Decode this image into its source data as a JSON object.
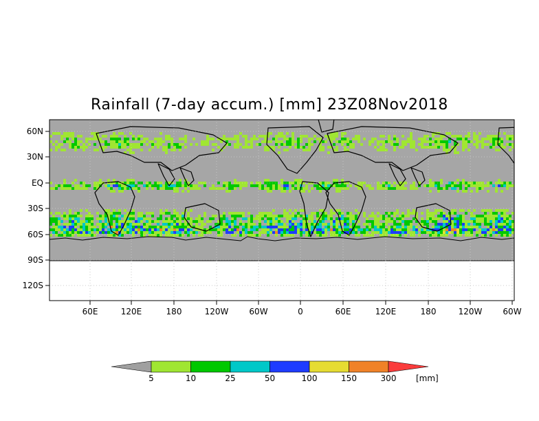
{
  "title": "Rainfall (7-day accum.) [mm] 23Z08Nov2018",
  "y_ticks": [
    "60N",
    "30N",
    "EQ",
    "30S",
    "60S",
    "90S",
    "120S"
  ],
  "x_ticks": [
    "60E",
    "120E",
    "180",
    "120W",
    "60W",
    "0",
    "60E",
    "120E",
    "180",
    "120W",
    "60W"
  ],
  "legend": {
    "unit": "[mm]",
    "thresholds": [
      "5",
      "10",
      "25",
      "50",
      "100",
      "150",
      "300"
    ],
    "colors": {
      "below": "#a0a0a0",
      "bins": [
        "#a0e632",
        "#00c800",
        "#00c8c8",
        "#1e3cff",
        "#e6dc32",
        "#f08228",
        "#fa3c3c"
      ]
    }
  },
  "colors": {
    "no_rain": "#a6a6a6",
    "frame": "#000000",
    "grid": "#c8c8c8",
    "coast": "#000000"
  }
}
